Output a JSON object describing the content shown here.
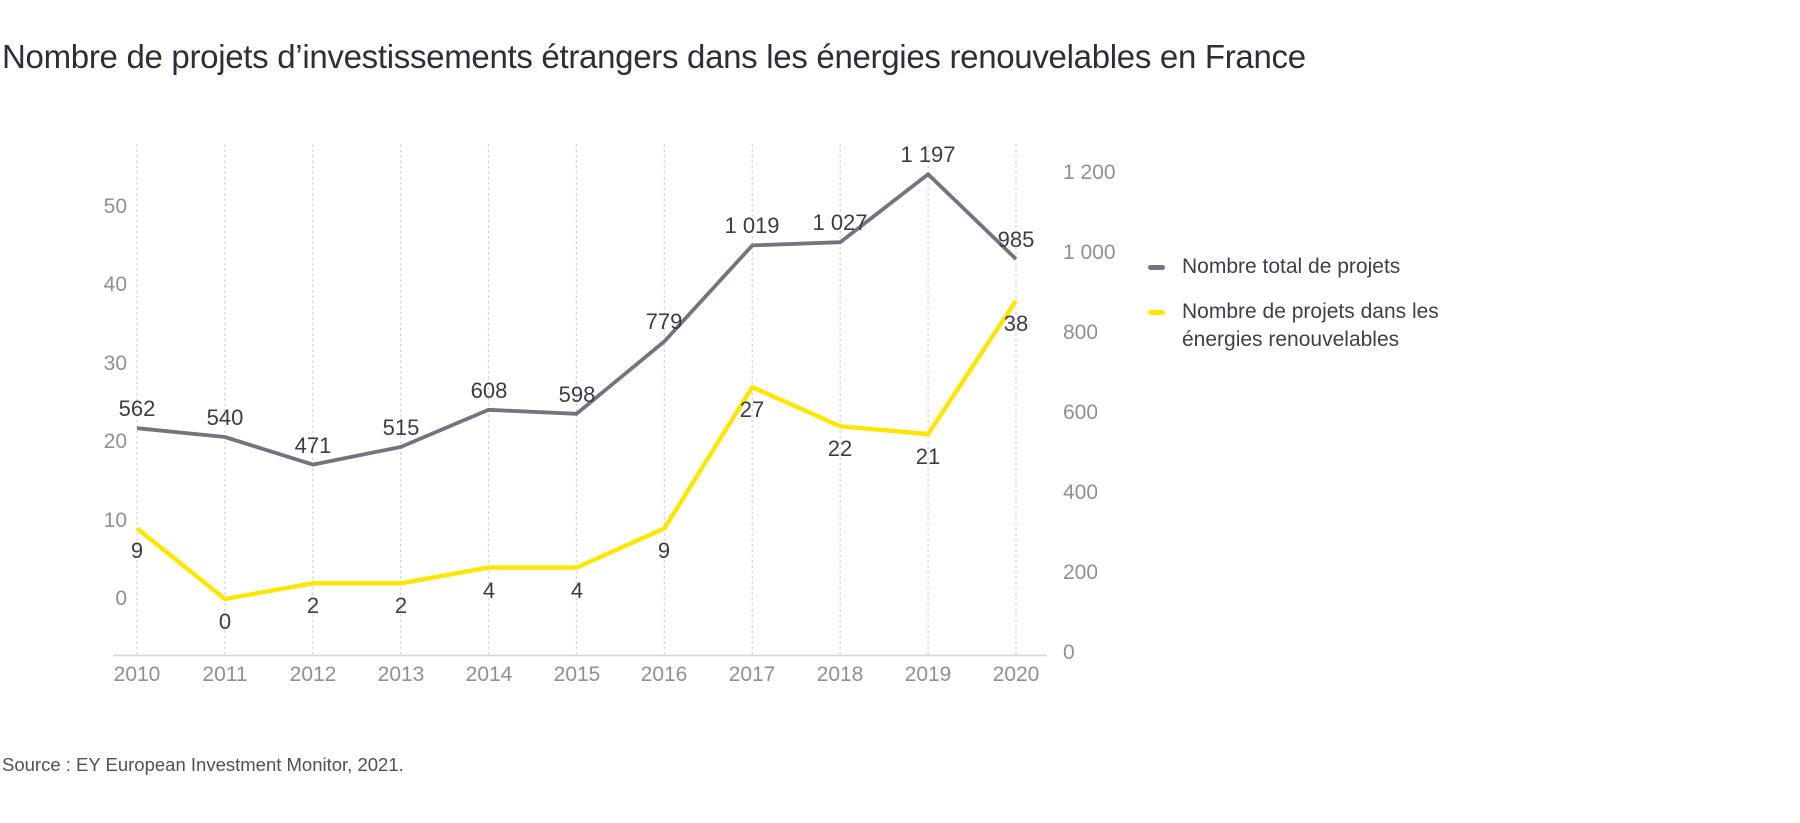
{
  "title": "Nombre de projets d’investissements étrangers dans les énergies renouvelables en France",
  "source": "Source : EY European Investment Monitor, 2021.",
  "colors": {
    "total_line": "#747480",
    "renewable_line": "#ffe600",
    "title_text": "#2e2e38",
    "data_label_text": "#3c3c46",
    "axis_tick_text": "#8f8f99",
    "legend_text": "#3f3f4a",
    "grid_line": "#d2d2d8",
    "axis_line": "#d6d6da",
    "background": "#ffffff"
  },
  "legend": {
    "total": {
      "label": "Nombre total de projets"
    },
    "renewable": {
      "label": "Nombre de projets dans les énergies renouvelables"
    }
  },
  "chart_data": {
    "type": "line",
    "x": [
      2010,
      2011,
      2012,
      2013,
      2014,
      2015,
      2016,
      2017,
      2018,
      2019,
      2020
    ],
    "x_labels": [
      "2010",
      "2011",
      "2012",
      "2013",
      "2014",
      "2015",
      "2016",
      "2017",
      "2018",
      "2019",
      "2020"
    ],
    "series": [
      {
        "name": "Nombre total de projets",
        "key": "total",
        "axis": "right",
        "color_key": "total_line",
        "values": [
          562,
          540,
          471,
          515,
          608,
          598,
          779,
          1019,
          1027,
          1197,
          985
        ],
        "labels": [
          "562",
          "540",
          "471",
          "515",
          "608",
          "598",
          "779",
          "1 019",
          "1 027",
          "1 197",
          "985"
        ],
        "label_position": "above"
      },
      {
        "name": "Nombre de projets dans les énergies renouvelables",
        "key": "renewable",
        "axis": "left",
        "color_key": "renewable_line",
        "values": [
          9,
          0,
          2,
          2,
          4,
          4,
          9,
          27,
          22,
          21,
          38
        ],
        "labels": [
          "9",
          "0",
          "2",
          "2",
          "4",
          "4",
          "9",
          "27",
          "22",
          "21",
          "38"
        ],
        "label_position": "below"
      }
    ],
    "left_axis": {
      "ticks": [
        0,
        10,
        20,
        30,
        40,
        50
      ],
      "labels": [
        "0",
        "10",
        "20",
        "30",
        "40",
        "50"
      ],
      "range": [
        0,
        50
      ]
    },
    "right_axis": {
      "ticks": [
        0,
        200,
        400,
        600,
        800,
        1000,
        1200
      ],
      "labels": [
        "0",
        "200",
        "400",
        "600",
        "800",
        "1 000",
        "1 200"
      ],
      "range": [
        0,
        1200
      ]
    },
    "grid": "vertical-dotted",
    "legend_position": "right-of-chart"
  }
}
